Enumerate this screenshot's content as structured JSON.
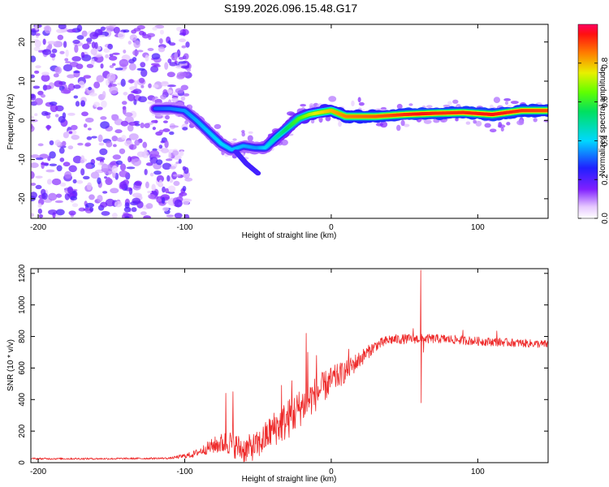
{
  "title": "S199.2026.096.15.48.G17",
  "colors": {
    "snr_line": "#ee2b2b",
    "axis": "#000000",
    "background": "#ffffff"
  },
  "chart_data": [
    {
      "type": "heatmap",
      "name": "spectrogram",
      "xlabel": "Height of straight line (km)",
      "ylabel": "Frequency (Hz)",
      "xlim": [
        -205,
        148
      ],
      "ylim": [
        -25,
        24.5
      ],
      "xticks": [
        -200,
        -100,
        0,
        100
      ],
      "xtick_labels": [
        "-200",
        "-100",
        "0",
        "100"
      ],
      "yticks": [
        -20,
        -10,
        0,
        10,
        20
      ],
      "ytick_labels": [
        "-20",
        "-10",
        "0",
        "10",
        "20"
      ],
      "colorbar": {
        "label": "Normalized spectral amplitude",
        "range": [
          0.0,
          1.0
        ],
        "ticks": [
          0.0,
          0.2,
          0.4,
          0.6,
          0.8
        ],
        "tick_labels": [
          "0.0",
          "0.2",
          "0.4",
          "0.6",
          "0.8"
        ],
        "colormap": "rainbow (white-purple at 0, red at 1)"
      },
      "noise_region": {
        "x_range": [
          -205,
          -100
        ],
        "freq_range": [
          -25,
          24.5
        ],
        "amplitude": 0.15
      },
      "ridge": [
        {
          "x": -120,
          "f": 3.0
        },
        {
          "x": -110,
          "f": 3.0
        },
        {
          "x": -100,
          "f": 2.5
        },
        {
          "x": -92,
          "f": 0.0
        },
        {
          "x": -85,
          "f": -2.5
        },
        {
          "x": -75,
          "f": -6.0
        },
        {
          "x": -68,
          "f": -7.5
        },
        {
          "x": -60,
          "f": -6.5
        },
        {
          "x": -52,
          "f": -7.0
        },
        {
          "x": -45,
          "f": -7.0
        },
        {
          "x": -38,
          "f": -4.5
        },
        {
          "x": -30,
          "f": -2.0
        },
        {
          "x": -22,
          "f": 0.5
        },
        {
          "x": -15,
          "f": 1.5
        },
        {
          "x": -8,
          "f": 2.0
        },
        {
          "x": 0,
          "f": 2.5
        },
        {
          "x": 10,
          "f": 1.0
        },
        {
          "x": 30,
          "f": 1.0
        },
        {
          "x": 50,
          "f": 1.5
        },
        {
          "x": 70,
          "f": 1.8
        },
        {
          "x": 90,
          "f": 2.0
        },
        {
          "x": 110,
          "f": 1.5
        },
        {
          "x": 130,
          "f": 2.5
        },
        {
          "x": 148,
          "f": 2.5
        }
      ],
      "ridge_amplitude": [
        {
          "x": -120,
          "a": 0.3
        },
        {
          "x": -100,
          "a": 0.35
        },
        {
          "x": -75,
          "a": 0.4
        },
        {
          "x": -50,
          "a": 0.35
        },
        {
          "x": -30,
          "a": 0.55
        },
        {
          "x": -10,
          "a": 0.75
        },
        {
          "x": 10,
          "a": 0.85
        },
        {
          "x": 40,
          "a": 0.9
        },
        {
          "x": 60,
          "a": 0.95
        },
        {
          "x": 80,
          "a": 0.92
        },
        {
          "x": 110,
          "a": 0.95
        },
        {
          "x": 148,
          "a": 0.9
        }
      ],
      "side_branch": [
        {
          "x": -65,
          "f": -8.0
        },
        {
          "x": -58,
          "f": -11.0
        },
        {
          "x": -50,
          "f": -13.5
        }
      ]
    },
    {
      "type": "line",
      "name": "snr",
      "xlabel": "Height of straight line (km)",
      "ylabel": "SNR (10 * v/v)",
      "xlim": [
        -205,
        148
      ],
      "ylim": [
        0,
        1230
      ],
      "xticks": [
        -200,
        -100,
        0,
        100
      ],
      "xtick_labels": [
        "-200",
        "-100",
        "0",
        "100"
      ],
      "yticks": [
        0,
        200,
        400,
        600,
        800,
        1000,
        1200
      ],
      "ytick_labels": [
        "0",
        "200",
        "400",
        "600",
        "800",
        "1000",
        "1200"
      ],
      "trend": [
        {
          "x": -205,
          "y": 25
        },
        {
          "x": -150,
          "y": 25
        },
        {
          "x": -110,
          "y": 28
        },
        {
          "x": -95,
          "y": 50
        },
        {
          "x": -80,
          "y": 110
        },
        {
          "x": -70,
          "y": 130
        },
        {
          "x": -60,
          "y": 80
        },
        {
          "x": -50,
          "y": 110
        },
        {
          "x": -40,
          "y": 210
        },
        {
          "x": -30,
          "y": 270
        },
        {
          "x": -20,
          "y": 360
        },
        {
          "x": -10,
          "y": 440
        },
        {
          "x": 0,
          "y": 520
        },
        {
          "x": 10,
          "y": 580
        },
        {
          "x": 20,
          "y": 660
        },
        {
          "x": 30,
          "y": 740
        },
        {
          "x": 40,
          "y": 780
        },
        {
          "x": 55,
          "y": 785
        },
        {
          "x": 75,
          "y": 785
        },
        {
          "x": 100,
          "y": 770
        },
        {
          "x": 125,
          "y": 760
        },
        {
          "x": 148,
          "y": 750
        }
      ],
      "noise": [
        {
          "x": -205,
          "a": 6
        },
        {
          "x": -110,
          "a": 6
        },
        {
          "x": -90,
          "a": 25
        },
        {
          "x": -70,
          "a": 80
        },
        {
          "x": -50,
          "a": 90
        },
        {
          "x": -30,
          "a": 130
        },
        {
          "x": -10,
          "a": 110
        },
        {
          "x": 10,
          "a": 70
        },
        {
          "x": 30,
          "a": 35
        },
        {
          "x": 60,
          "a": 30
        },
        {
          "x": 148,
          "a": 25
        }
      ],
      "spikes": [
        {
          "x": -72,
          "y": 440
        },
        {
          "x": -67,
          "y": 450
        },
        {
          "x": -34,
          "y": 490
        },
        {
          "x": -27,
          "y": 520
        },
        {
          "x": -17,
          "y": 820
        },
        {
          "x": -16,
          "y": 700
        },
        {
          "x": -10,
          "y": 680
        },
        {
          "x": 12,
          "y": 720
        },
        {
          "x": 56,
          "y": 850
        },
        {
          "x": 61,
          "y": 1220
        },
        {
          "x": 61.5,
          "y": 380
        },
        {
          "x": 63,
          "y": 700
        },
        {
          "x": 90,
          "y": 840
        },
        {
          "x": 113,
          "y": 835
        }
      ]
    }
  ]
}
